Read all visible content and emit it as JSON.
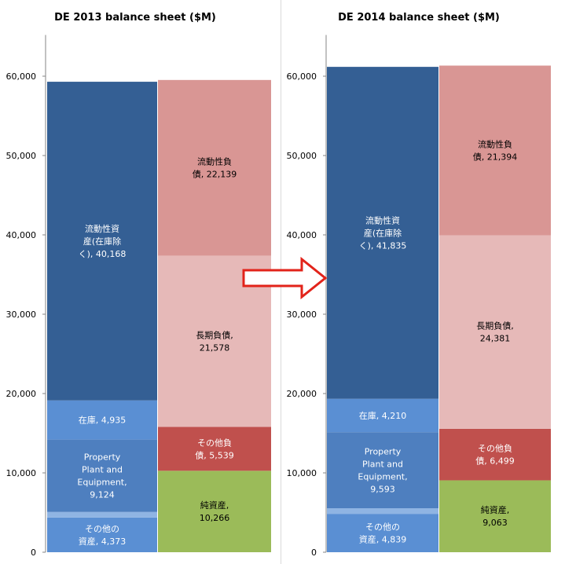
{
  "colors": {
    "current_assets": "#345f94",
    "inventory": "#5a8fd3",
    "ppe": "#4e7fbf",
    "other_assets_strip": "#8fb4e3",
    "other_assets": "#5a8fd3",
    "current_liabilities": "#d99694",
    "long_term_debt": "#e6b9b8",
    "other_liabilities": "#c0504d",
    "net_assets": "#9bbb59",
    "arrow": "#e2231a"
  },
  "chart_data": [
    {
      "type": "bar",
      "stacked": true,
      "title": "DE 2013 balance sheet ($M)",
      "ylim": [
        0,
        65000
      ],
      "yticks": [
        "0",
        "10,000",
        "20,000",
        "30,000",
        "40,000",
        "50,000",
        "60,000"
      ],
      "ytick_values": [
        0,
        10000,
        20000,
        30000,
        40000,
        50000,
        60000
      ],
      "columns": [
        {
          "name": "assets",
          "segments": [
            {
              "key": "other_assets",
              "label": [
                "その他の",
                "資産, 4,373"
              ],
              "value": 4373,
              "color_key": "other_assets"
            },
            {
              "key": "other_assets_strip",
              "label": [],
              "value": 700,
              "color_key": "other_assets_strip"
            },
            {
              "key": "ppe",
              "label": [
                "Property",
                "Plant and",
                "Equipment,",
                "9,124"
              ],
              "value": 9124,
              "color_key": "ppe"
            },
            {
              "key": "inventory",
              "label": [
                "在庫, 4,935"
              ],
              "value": 4935,
              "color_key": "inventory"
            },
            {
              "key": "current_assets",
              "label": [
                "流動性資",
                "産(在庫除",
                "く), 40,168"
              ],
              "value": 40168,
              "color_key": "current_assets"
            }
          ]
        },
        {
          "name": "liabilities",
          "segments": [
            {
              "key": "net_assets",
              "label": [
                "純資産,",
                "10,266"
              ],
              "value": 10266,
              "color_key": "net_assets"
            },
            {
              "key": "other_liabilities",
              "label": [
                "その他負",
                "債, 5,539"
              ],
              "value": 5539,
              "color_key": "other_liabilities"
            },
            {
              "key": "long_term_debt",
              "label": [
                "長期負債,",
                "21,578"
              ],
              "value": 21578,
              "color_key": "long_term_debt"
            },
            {
              "key": "current_liabilities",
              "label": [
                "流動性負",
                "債, 22,139"
              ],
              "value": 22139,
              "color_key": "current_liabilities"
            }
          ]
        }
      ]
    },
    {
      "type": "bar",
      "stacked": true,
      "title": "DE 2014 balance sheet ($M)",
      "ylim": [
        0,
        65000
      ],
      "yticks": [
        "0",
        "10,000",
        "20,000",
        "30,000",
        "40,000",
        "50,000",
        "60,000"
      ],
      "ytick_values": [
        0,
        10000,
        20000,
        30000,
        40000,
        50000,
        60000
      ],
      "columns": [
        {
          "name": "assets",
          "segments": [
            {
              "key": "other_assets",
              "label": [
                "その他の",
                "資産, 4,839"
              ],
              "value": 4839,
              "color_key": "other_assets"
            },
            {
              "key": "other_assets_strip",
              "label": [],
              "value": 700,
              "color_key": "other_assets_strip"
            },
            {
              "key": "ppe",
              "label": [
                "Property",
                "Plant and",
                "Equipment,",
                "9,593"
              ],
              "value": 9593,
              "color_key": "ppe"
            },
            {
              "key": "inventory",
              "label": [
                "在庫, 4,210"
              ],
              "value": 4210,
              "color_key": "inventory"
            },
            {
              "key": "current_assets",
              "label": [
                "流動性資",
                "産(在庫除",
                "く), 41,835"
              ],
              "value": 41835,
              "color_key": "current_assets"
            }
          ]
        },
        {
          "name": "liabilities",
          "segments": [
            {
              "key": "net_assets",
              "label": [
                "純資産,",
                "9,063"
              ],
              "value": 9063,
              "color_key": "net_assets"
            },
            {
              "key": "other_liabilities",
              "label": [
                "その他負",
                "債, 6,499"
              ],
              "value": 6499,
              "color_key": "other_liabilities"
            },
            {
              "key": "long_term_debt",
              "label": [
                "長期負債,",
                "24,381"
              ],
              "value": 24381,
              "color_key": "long_term_debt"
            },
            {
              "key": "current_liabilities",
              "label": [
                "流動性負",
                "債, 21,394"
              ],
              "value": 21394,
              "color_key": "current_liabilities"
            }
          ]
        }
      ]
    }
  ]
}
